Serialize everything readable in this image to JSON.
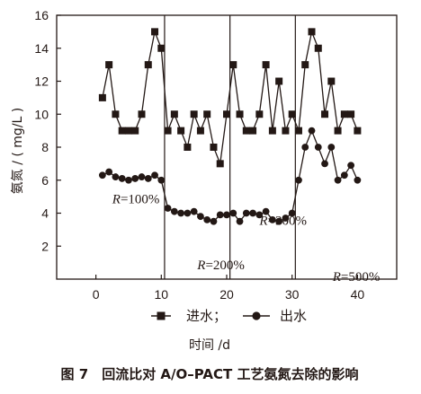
{
  "chart_data": {
    "type": "line",
    "title": "",
    "xlabel": "时间 /d",
    "ylabel": "氨氮 / ( mg/L )",
    "xlim": [
      -6,
      46
    ],
    "ylim": [
      0,
      16
    ],
    "xticks": [
      0,
      10,
      20,
      30,
      40
    ],
    "yticks": [
      2,
      4,
      6,
      8,
      10,
      12,
      14,
      16
    ],
    "xtick_labels": [
      "0",
      "10",
      "20",
      "30",
      "40"
    ],
    "ytick_labels": [
      "2",
      "4",
      "6",
      "8",
      "10",
      "12",
      "14",
      "16"
    ],
    "grid": false,
    "series": [
      {
        "name": "进水",
        "marker": "square",
        "x": [
          1,
          2,
          3,
          4,
          5,
          6,
          7,
          8,
          9,
          10,
          11,
          12,
          13,
          14,
          15,
          16,
          17,
          18,
          19,
          20,
          21,
          22,
          23,
          24,
          25,
          26,
          27,
          28,
          29,
          30,
          31,
          32,
          33,
          34,
          35,
          36,
          37,
          38,
          39,
          40
        ],
        "values": [
          11,
          13,
          10,
          9,
          9,
          9,
          10,
          13,
          15,
          14,
          9,
          10,
          9,
          8,
          10,
          9,
          10,
          8,
          7,
          10,
          13,
          10,
          9,
          9,
          10,
          13,
          9,
          12,
          9,
          10,
          9,
          13,
          15,
          14,
          10,
          12,
          9,
          10,
          10,
          9
        ]
      },
      {
        "name": "出水",
        "marker": "circle",
        "x": [
          1,
          2,
          3,
          4,
          5,
          6,
          7,
          8,
          9,
          10,
          11,
          12,
          13,
          14,
          15,
          16,
          17,
          18,
          19,
          20,
          21,
          22,
          23,
          24,
          25,
          26,
          27,
          28,
          29,
          30,
          31,
          32,
          33,
          34,
          35,
          36,
          37,
          38,
          39,
          40
        ],
        "values": [
          6.3,
          6.5,
          6.2,
          6.1,
          6.0,
          6.1,
          6.2,
          6.1,
          6.3,
          6.0,
          4.3,
          4.1,
          4.0,
          4.0,
          4.1,
          3.8,
          3.6,
          3.5,
          3.9,
          3.9,
          4.0,
          3.5,
          4.0,
          4.0,
          3.9,
          4.1,
          3.6,
          3.5,
          3.7,
          4.0,
          6.0,
          8.0,
          9.0,
          8.0,
          7.0,
          8.0,
          6.0,
          6.3,
          6.9,
          6.0
        ]
      }
    ],
    "dividers_x": [
      10.5,
      20.5,
      30.5
    ],
    "annotations": [
      {
        "r": "R",
        "text": "=100%",
        "x": 2.5,
        "y": 4.6
      },
      {
        "r": "R",
        "text": "=200%",
        "x": 15.5,
        "y": 0.6
      },
      {
        "r": "R",
        "text": "=300%",
        "x": 25.0,
        "y": 3.3
      },
      {
        "r": "R",
        "text": "=500%",
        "x": 36.2,
        "y": -0.1
      }
    ],
    "legend_position": "bottom-center",
    "legend": [
      {
        "label": "进水；",
        "marker": "square"
      },
      {
        "label": "出水",
        "marker": "circle"
      }
    ]
  },
  "caption": "图 7　回流比对 A/O–PACT 工艺氨氮去除的影响",
  "colors": {
    "ink": "#231815",
    "background": "#ffffff"
  }
}
